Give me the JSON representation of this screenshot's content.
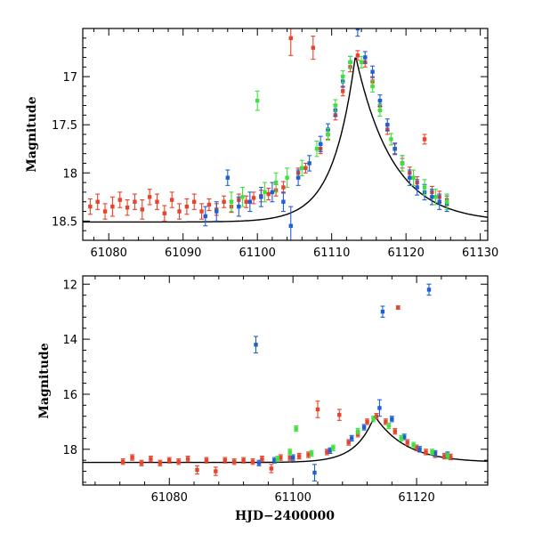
{
  "colors": {
    "red": "#e8432c",
    "blue": "#1f5fd6",
    "green": "#3fe03f",
    "model": "#000000"
  },
  "chart_data": [
    {
      "type": "scatter",
      "panel": "top",
      "title": "",
      "xlabel": "",
      "ylabel": "Magnitude",
      "xlim": [
        61076.5,
        61131
      ],
      "ylim": [
        18.7,
        16.5
      ],
      "xticks": [
        61080,
        61090,
        61100,
        61110,
        61120,
        61130
      ],
      "xtick_labels": [
        "61080",
        "61090",
        "61100",
        "61110",
        "61120",
        "61130"
      ],
      "yticks": [
        17,
        17.5,
        18,
        18.5
      ],
      "ytick_labels": [
        "17",
        "17.5",
        "18",
        "18.5"
      ],
      "model": {
        "baseline": 18.51,
        "peak_time": 61113.2,
        "peak_mag": 16.78,
        "rise_tau": 3.0,
        "decay_tau": 5.0
      },
      "series": [
        {
          "name": "red",
          "color_key": "red",
          "points": [
            [
              61077.5,
              18.35,
              0.08
            ],
            [
              61078.5,
              18.3,
              0.08
            ],
            [
              61079.5,
              18.4,
              0.08
            ],
            [
              61080.5,
              18.35,
              0.1
            ],
            [
              61081.5,
              18.28,
              0.08
            ],
            [
              61082.5,
              18.36,
              0.08
            ],
            [
              61083.5,
              18.3,
              0.08
            ],
            [
              61084.5,
              18.38,
              0.1
            ],
            [
              61085.5,
              18.25,
              0.08
            ],
            [
              61086.5,
              18.3,
              0.08
            ],
            [
              61087.5,
              18.42,
              0.08
            ],
            [
              61088.5,
              18.28,
              0.08
            ],
            [
              61089.5,
              18.4,
              0.08
            ],
            [
              61090.5,
              18.35,
              0.08
            ],
            [
              61091.5,
              18.3,
              0.08
            ],
            [
              61092.5,
              18.4,
              0.08
            ],
            [
              61093.5,
              18.33,
              0.06
            ],
            [
              61094.5,
              18.38,
              0.06
            ],
            [
              61095.5,
              18.3,
              0.06
            ],
            [
              61096.5,
              18.35,
              0.06
            ],
            [
              61097.5,
              18.28,
              0.06
            ],
            [
              61098.5,
              18.3,
              0.06
            ],
            [
              61099.5,
              18.26,
              0.06
            ],
            [
              61100.5,
              18.24,
              0.06
            ],
            [
              61101.5,
              18.22,
              0.06
            ],
            [
              61102.5,
              18.18,
              0.06
            ],
            [
              61103.5,
              18.15,
              0.06
            ],
            [
              61104.5,
              16.6,
              0.18
            ],
            [
              61105.5,
              18.0,
              0.05
            ],
            [
              61106.5,
              17.95,
              0.05
            ],
            [
              61107.5,
              16.7,
              0.12
            ],
            [
              61108.5,
              17.75,
              0.05
            ],
            [
              61109.5,
              17.6,
              0.05
            ],
            [
              61110.5,
              17.4,
              0.05
            ],
            [
              61111.5,
              17.15,
              0.05
            ],
            [
              61112.5,
              16.9,
              0.05
            ],
            [
              61113.5,
              16.78,
              0.05
            ],
            [
              61114.5,
              16.85,
              0.05
            ],
            [
              61115.5,
              17.05,
              0.05
            ],
            [
              61116.5,
              17.3,
              0.05
            ],
            [
              61117.5,
              17.55,
              0.05
            ],
            [
              61118.5,
              17.75,
              0.05
            ],
            [
              61119.5,
              17.9,
              0.05
            ],
            [
              61120.5,
              18.0,
              0.06
            ],
            [
              61121.5,
              18.1,
              0.06
            ],
            [
              61122.5,
              17.65,
              0.05
            ],
            [
              61123.5,
              18.2,
              0.06
            ],
            [
              61124.5,
              18.25,
              0.06
            ],
            [
              61125.5,
              18.28,
              0.06
            ]
          ]
        },
        {
          "name": "blue",
          "color_key": "blue",
          "points": [
            [
              61093.0,
              18.45,
              0.1
            ],
            [
              61094.5,
              18.4,
              0.1
            ],
            [
              61096.0,
              18.05,
              0.08
            ],
            [
              61097.5,
              18.35,
              0.1
            ],
            [
              61099.0,
              18.3,
              0.1
            ],
            [
              61100.5,
              18.25,
              0.1
            ],
            [
              61102.0,
              18.2,
              0.1
            ],
            [
              61103.5,
              18.3,
              0.1
            ],
            [
              61104.5,
              18.55,
              0.2
            ],
            [
              61105.5,
              18.05,
              0.08
            ],
            [
              61107.0,
              17.9,
              0.08
            ],
            [
              61108.5,
              17.7,
              0.08
            ],
            [
              61109.5,
              17.55,
              0.06
            ],
            [
              61110.5,
              17.35,
              0.06
            ],
            [
              61111.5,
              17.05,
              0.06
            ],
            [
              61112.5,
              16.85,
              0.06
            ],
            [
              61113.5,
              16.5,
              0.08
            ],
            [
              61114.5,
              16.8,
              0.06
            ],
            [
              61115.5,
              16.95,
              0.06
            ],
            [
              61116.5,
              17.25,
              0.06
            ],
            [
              61117.5,
              17.5,
              0.06
            ],
            [
              61118.5,
              17.75,
              0.06
            ],
            [
              61119.5,
              17.9,
              0.08
            ],
            [
              61120.5,
              18.05,
              0.08
            ],
            [
              61121.5,
              18.15,
              0.08
            ],
            [
              61122.5,
              18.2,
              0.08
            ],
            [
              61123.5,
              18.25,
              0.08
            ],
            [
              61124.5,
              18.3,
              0.08
            ],
            [
              61125.5,
              18.32,
              0.08
            ]
          ]
        },
        {
          "name": "green",
          "color_key": "green",
          "points": [
            [
              61096.5,
              18.3,
              0.1
            ],
            [
              61098.0,
              18.25,
              0.1
            ],
            [
              61100.0,
              17.25,
              0.1
            ],
            [
              61101.0,
              18.2,
              0.1
            ],
            [
              61102.5,
              18.1,
              0.1
            ],
            [
              61104.0,
              18.05,
              0.1
            ],
            [
              61106.0,
              17.95,
              0.08
            ],
            [
              61108.0,
              17.75,
              0.08
            ],
            [
              61109.5,
              17.6,
              0.06
            ],
            [
              61110.5,
              17.3,
              0.06
            ],
            [
              61111.5,
              17.0,
              0.06
            ],
            [
              61112.5,
              16.85,
              0.06
            ],
            [
              61114.0,
              16.85,
              0.06
            ],
            [
              61115.5,
              17.1,
              0.06
            ],
            [
              61116.5,
              17.35,
              0.06
            ],
            [
              61118.0,
              17.65,
              0.06
            ],
            [
              61119.5,
              17.9,
              0.08
            ],
            [
              61121.0,
              18.05,
              0.08
            ],
            [
              61122.5,
              18.15,
              0.08
            ],
            [
              61124.0,
              18.25,
              0.08
            ],
            [
              61125.5,
              18.3,
              0.08
            ]
          ]
        }
      ]
    },
    {
      "type": "scatter",
      "panel": "bottom",
      "title": "",
      "xlabel": "HJD−2400000",
      "ylabel": "Magnitude",
      "xlim": [
        61066,
        61131.5
      ],
      "ylim": [
        19.3,
        11.7
      ],
      "xticks": [
        61080,
        61100,
        61120
      ],
      "xtick_labels": [
        "61080",
        "61100",
        "61120"
      ],
      "yticks": [
        12,
        14,
        16,
        18
      ],
      "ytick_labels": [
        "12",
        "14",
        "16",
        "18"
      ],
      "model": {
        "baseline": 18.48,
        "peak_time": 61113.2,
        "peak_mag": 16.78,
        "rise_tau": 3.0,
        "decay_tau": 5.0
      },
      "series": [
        {
          "name": "red",
          "color_key": "red",
          "points": [
            [
              61072.5,
              18.45,
              0.1
            ],
            [
              61074.0,
              18.3,
              0.1
            ],
            [
              61075.5,
              18.5,
              0.1
            ],
            [
              61077.0,
              18.35,
              0.1
            ],
            [
              61078.5,
              18.5,
              0.1
            ],
            [
              61080.0,
              18.4,
              0.1
            ],
            [
              61081.5,
              18.45,
              0.1
            ],
            [
              61083.0,
              18.35,
              0.1
            ],
            [
              61084.5,
              18.75,
              0.15
            ],
            [
              61086.0,
              18.4,
              0.1
            ],
            [
              61087.5,
              18.8,
              0.15
            ],
            [
              61089.0,
              18.4,
              0.1
            ],
            [
              61090.5,
              18.45,
              0.1
            ],
            [
              61092.0,
              18.4,
              0.1
            ],
            [
              61093.5,
              18.45,
              0.1
            ],
            [
              61095.0,
              18.35,
              0.1
            ],
            [
              61096.5,
              18.7,
              0.15
            ],
            [
              61098.0,
              18.3,
              0.1
            ],
            [
              61099.5,
              18.3,
              0.1
            ],
            [
              61101.0,
              18.25,
              0.1
            ],
            [
              61102.5,
              18.2,
              0.1
            ],
            [
              61104.0,
              16.55,
              0.3
            ],
            [
              61105.5,
              18.1,
              0.1
            ],
            [
              61107.5,
              16.75,
              0.2
            ],
            [
              61109.0,
              17.75,
              0.1
            ],
            [
              61110.5,
              17.45,
              0.1
            ],
            [
              61112.0,
              17.0,
              0.1
            ],
            [
              61113.5,
              16.8,
              0.1
            ],
            [
              61115.0,
              17.0,
              0.1
            ],
            [
              61116.5,
              17.35,
              0.1
            ],
            [
              61117.0,
              12.85,
              0.06
            ],
            [
              61118.5,
              17.75,
              0.1
            ],
            [
              61120.0,
              17.95,
              0.1
            ],
            [
              61121.5,
              18.1,
              0.1
            ],
            [
              61123.0,
              18.2,
              0.1
            ],
            [
              61124.5,
              18.25,
              0.1
            ],
            [
              61125.5,
              18.28,
              0.1
            ]
          ]
        },
        {
          "name": "blue",
          "color_key": "blue",
          "points": [
            [
              61094.0,
              14.2,
              0.3
            ],
            [
              61094.5,
              18.5,
              0.1
            ],
            [
              61097.0,
              18.4,
              0.1
            ],
            [
              61100.0,
              18.3,
              0.1
            ],
            [
              61103.5,
              18.85,
              0.3
            ],
            [
              61106.0,
              18.05,
              0.1
            ],
            [
              61109.5,
              17.6,
              0.1
            ],
            [
              61111.5,
              17.2,
              0.1
            ],
            [
              61114.0,
              16.5,
              0.3
            ],
            [
              61114.5,
              13.0,
              0.2
            ],
            [
              61116.0,
              16.9,
              0.1
            ],
            [
              61118.0,
              17.55,
              0.1
            ],
            [
              61120.5,
              18.0,
              0.1
            ],
            [
              61122.0,
              12.2,
              0.2
            ],
            [
              61123.0,
              18.15,
              0.1
            ],
            [
              61125.0,
              18.2,
              0.1
            ]
          ]
        },
        {
          "name": "green",
          "color_key": "green",
          "points": [
            [
              61097.5,
              18.35,
              0.1
            ],
            [
              61099.5,
              18.1,
              0.1
            ],
            [
              61100.5,
              17.25,
              0.1
            ],
            [
              61103.0,
              18.15,
              0.1
            ],
            [
              61106.5,
              17.95,
              0.1
            ],
            [
              61110.5,
              17.35,
              0.1
            ],
            [
              61113.0,
              16.9,
              0.1
            ],
            [
              61115.5,
              17.15,
              0.1
            ],
            [
              61117.5,
              17.6,
              0.1
            ],
            [
              61119.5,
              17.85,
              0.1
            ],
            [
              61122.5,
              18.1,
              0.1
            ],
            [
              61125.0,
              18.25,
              0.1
            ]
          ]
        }
      ]
    }
  ]
}
